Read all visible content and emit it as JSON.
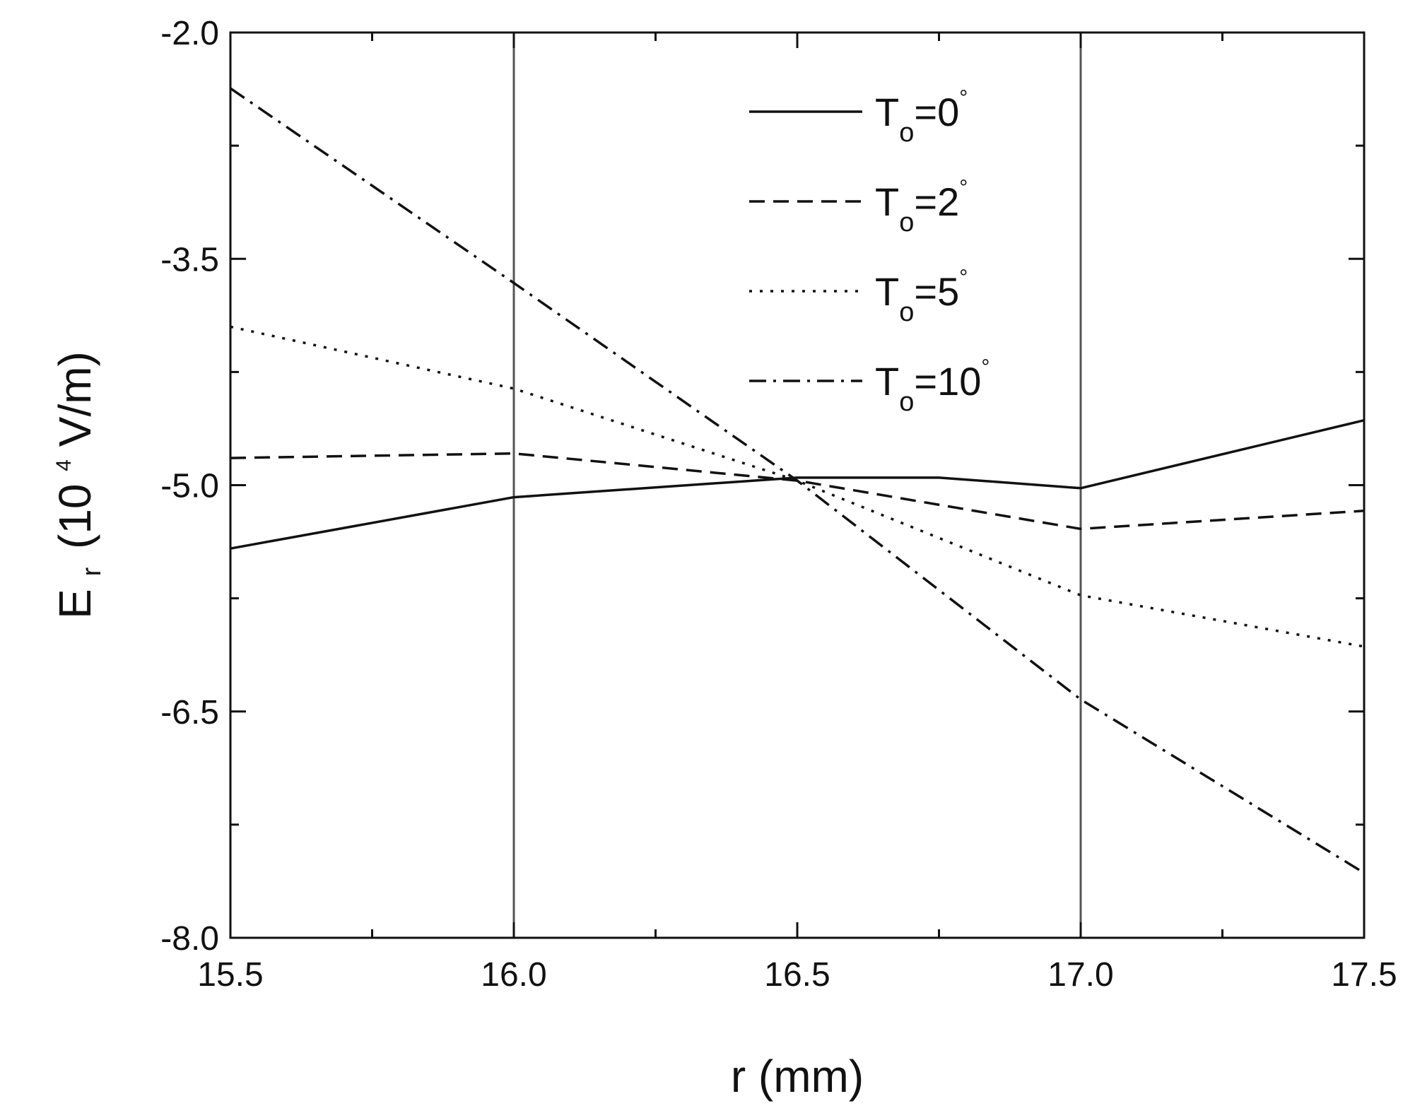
{
  "chart_data": {
    "type": "line",
    "title": "",
    "xlabel": "r (mm)",
    "ylabel": {
      "symbol": "E",
      "subscript": "r",
      "unit_prefix": "(10",
      "exponent": "4",
      "unit_suffix": " V/m)"
    },
    "xlim": [
      15.5,
      17.5
    ],
    "ylim": [
      -8.0,
      -2.0
    ],
    "xticks": [
      "15.5",
      "16.0",
      "16.5",
      "17.0",
      "17.5"
    ],
    "yticks": [
      "-2.0",
      "-3.5",
      "-5.0",
      "-6.5",
      "-8.0"
    ],
    "x_tick_values": [
      15.5,
      16.0,
      16.5,
      17.0,
      17.5
    ],
    "y_tick_values": [
      -2.0,
      -3.5,
      -5.0,
      -6.5,
      -8.0
    ],
    "vertical_reference_lines": [
      16.0,
      17.0
    ],
    "grid": false,
    "legend_position": "top-right",
    "x": [
      15.5,
      16.0,
      16.5,
      17.0,
      17.5
    ],
    "series": [
      {
        "name": "T₀=0°",
        "legend": {
          "base": "T",
          "sub": "o",
          "text": "=0",
          "deg": "°"
        },
        "dash": "solid",
        "x": [
          15.5,
          16.0,
          16.5,
          16.75,
          17.0,
          17.5
        ],
        "values": [
          -5.42,
          -5.08,
          -4.95,
          -4.95,
          -5.02,
          -4.57
        ]
      },
      {
        "name": "T₀=2°",
        "legend": {
          "base": "T",
          "sub": "o",
          "text": "=2",
          "deg": "°"
        },
        "dash": "dash",
        "x": [
          15.5,
          16.0,
          16.5,
          17.0,
          17.5
        ],
        "values": [
          -4.82,
          -4.79,
          -4.97,
          -5.29,
          -5.17
        ]
      },
      {
        "name": "T₀=5°",
        "legend": {
          "base": "T",
          "sub": "o",
          "text": "=5",
          "deg": "°"
        },
        "dash": "dot",
        "x": [
          15.5,
          16.0,
          16.5,
          17.0,
          17.5
        ],
        "values": [
          -3.95,
          -4.36,
          -4.97,
          -5.73,
          -6.07
        ]
      },
      {
        "name": "T₀=10°",
        "legend": {
          "base": "T",
          "sub": "o",
          "text": "=10",
          "deg": "°"
        },
        "dash": "dashdot",
        "x": [
          15.5,
          16.0,
          16.5,
          17.0,
          17.5
        ],
        "values": [
          -2.37,
          -3.66,
          -4.97,
          -6.42,
          -7.57
        ]
      }
    ]
  }
}
